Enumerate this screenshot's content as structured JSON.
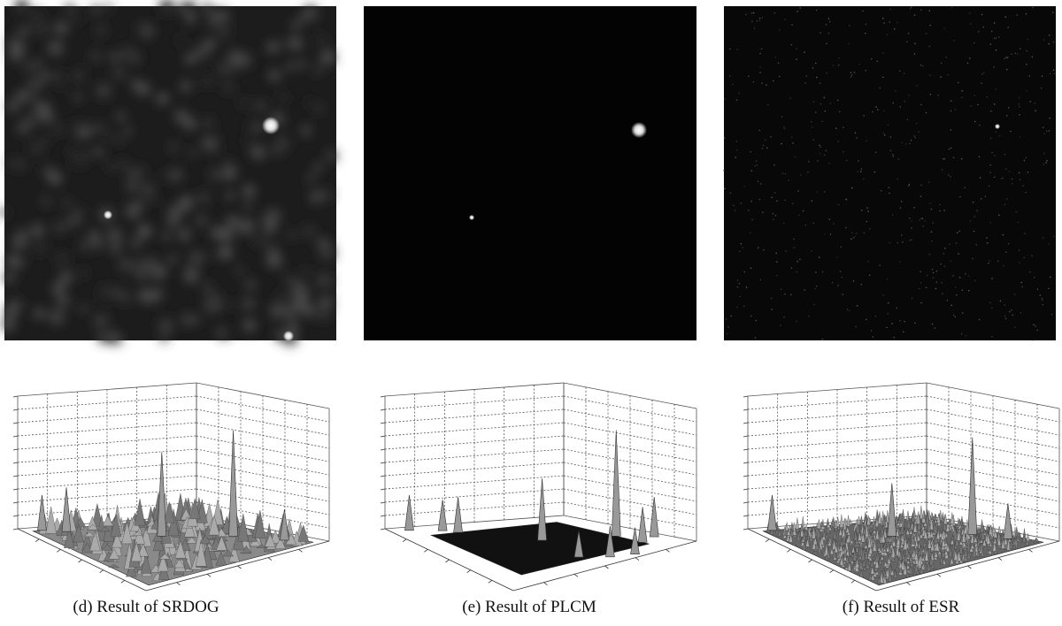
{
  "panels": [
    {
      "caption": "(d) Result of SRDOG"
    },
    {
      "caption": "(e) Result of PLCM"
    },
    {
      "caption": "(f) Result of ESR"
    }
  ]
}
